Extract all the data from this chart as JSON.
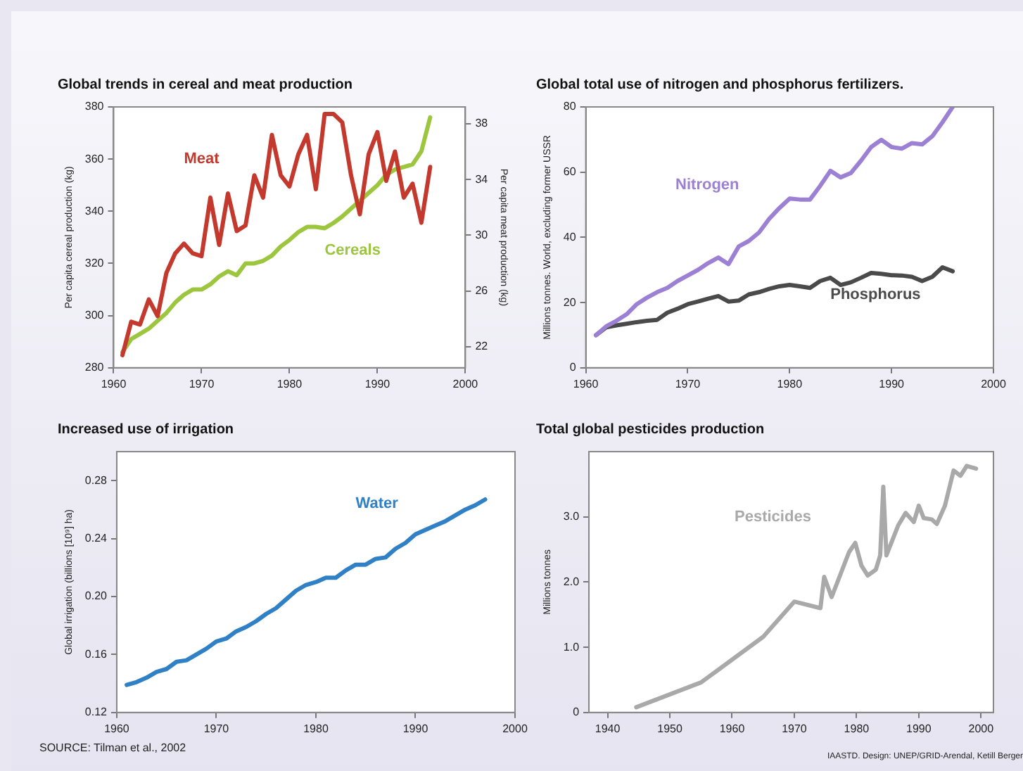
{
  "chart_data": [
    {
      "type": "line",
      "title": "Global trends in cereal and meat production",
      "ylabel": "Per capita cereal production (kg)",
      "y2label": "Per capita meat production (kg)",
      "x": [
        1961,
        1962,
        1963,
        1964,
        1965,
        1966,
        1967,
        1968,
        1969,
        1970,
        1971,
        1972,
        1973,
        1974,
        1975,
        1976,
        1977,
        1978,
        1979,
        1980,
        1981,
        1982,
        1983,
        1984,
        1985,
        1986,
        1987,
        1988,
        1989,
        1990,
        1991,
        1992,
        1993,
        1994,
        1995,
        1996
      ],
      "xlim": [
        1960,
        2000
      ],
      "xticks": [
        1960,
        1970,
        1980,
        1990,
        2000
      ],
      "ylim": [
        280,
        380
      ],
      "yticks": [
        280,
        300,
        320,
        340,
        360,
        380
      ],
      "y2lim": [
        20.5,
        39.2
      ],
      "y2ticks": [
        22,
        26,
        30,
        34,
        38
      ],
      "grid": false,
      "legend": false,
      "marker": "none",
      "line_style": "solid",
      "series": [
        {
          "name": "Meat",
          "color": "#c4392d",
          "axis": "y2",
          "values": [
            21.4,
            23.8,
            23.6,
            25.4,
            24.2,
            27.3,
            28.7,
            29.4,
            28.7,
            28.5,
            32.7,
            29.3,
            33,
            30.3,
            30.7,
            34.3,
            32.7,
            37.2,
            34.3,
            33.5,
            35.8,
            37.2,
            33.3,
            38.7,
            38.7,
            38.1,
            34.3,
            31.5,
            35.8,
            37.4,
            33.9,
            36,
            32.7,
            33.7,
            30.9,
            34.9
          ]
        },
        {
          "name": "Cereals",
          "color": "#9cc63e",
          "values": [
            286,
            291,
            293,
            295,
            298,
            301,
            305,
            308,
            310,
            310,
            312,
            315,
            317,
            315.5,
            320,
            320,
            321,
            323,
            326.5,
            329,
            332,
            334,
            334,
            333.5,
            335.5,
            338,
            341,
            344,
            347,
            350,
            354,
            356,
            357,
            358,
            363,
            376
          ]
        }
      ]
    },
    {
      "type": "line",
      "title": "Global total use of nitrogen and phosphorus fertilizers.",
      "ylabel": "Millions tonnes. World, excluding former USSR",
      "x": [
        1961,
        1962,
        1963,
        1964,
        1965,
        1966,
        1967,
        1968,
        1969,
        1970,
        1971,
        1972,
        1973,
        1974,
        1975,
        1976,
        1977,
        1978,
        1979,
        1980,
        1981,
        1982,
        1983,
        1984,
        1985,
        1986,
        1987,
        1988,
        1989,
        1990,
        1991,
        1992,
        1993,
        1994,
        1995,
        1996
      ],
      "xlim": [
        1960,
        2000
      ],
      "xticks": [
        1960,
        1970,
        1980,
        1990,
        2000
      ],
      "ylim": [
        0,
        80
      ],
      "yticks": [
        0,
        20,
        40,
        60,
        80
      ],
      "grid": false,
      "legend": false,
      "marker": "none",
      "line_style": "solid",
      "series": [
        {
          "name": "Nitrogen",
          "color": "#9b80d4",
          "values": [
            10,
            12.7,
            14.4,
            16.4,
            19.5,
            21.5,
            23.2,
            24.5,
            26.6,
            28.3,
            30,
            32.1,
            33.8,
            31.8,
            37.2,
            38.9,
            41.5,
            45.7,
            49,
            51.9,
            51.6,
            51.6,
            55.8,
            60.4,
            58.4,
            59.7,
            63.5,
            67.7,
            69.9,
            67.7,
            67.2,
            68.9,
            68.5,
            71,
            75.3,
            80
          ]
        },
        {
          "name": "Phosphorus",
          "color": "#4a4a4a",
          "values": [
            10,
            12.4,
            13,
            13.5,
            14,
            14.4,
            14.7,
            16.9,
            18.1,
            19.5,
            20.3,
            21.2,
            22,
            20.3,
            20.6,
            22.5,
            23.2,
            24.2,
            25,
            25.4,
            25,
            24.5,
            26.6,
            27.6,
            25.4,
            26.2,
            27.6,
            29.1,
            28.8,
            28.4,
            28.3,
            27.9,
            26.6,
            27.9,
            30.8,
            29.6
          ]
        }
      ]
    },
    {
      "type": "line",
      "title": "Increased use of irrigation",
      "ylabel": "Global irrigation (billions [10⁹] ha)",
      "x": [
        1961,
        1962,
        1963,
        1964,
        1965,
        1966,
        1967,
        1968,
        1969,
        1970,
        1971,
        1972,
        1973,
        1974,
        1975,
        1976,
        1977,
        1978,
        1979,
        1980,
        1981,
        1982,
        1983,
        1984,
        1985,
        1986,
        1987,
        1988,
        1989,
        1990,
        1991,
        1992,
        1993,
        1994,
        1995,
        1996,
        1997
      ],
      "xlim": [
        1960,
        2000
      ],
      "xticks": [
        1960,
        1970,
        1980,
        1990,
        2000
      ],
      "ylim": [
        0.12,
        0.3
      ],
      "yticks": [
        {
          "value": 0.12,
          "label": "0.12"
        },
        {
          "value": 0.16,
          "label": "0.16"
        },
        {
          "value": 0.2,
          "label": "0.20"
        },
        {
          "value": 0.24,
          "label": "0.24"
        },
        {
          "value": 0.28,
          "label": "0.28"
        }
      ],
      "grid": false,
      "legend": false,
      "marker": "none",
      "line_style": "solid",
      "series": [
        {
          "name": "Water",
          "color": "#2f80c4",
          "values": [
            0.139,
            0.141,
            0.144,
            0.148,
            0.15,
            0.155,
            0.156,
            0.16,
            0.164,
            0.169,
            0.171,
            0.176,
            0.179,
            0.183,
            0.188,
            0.192,
            0.198,
            0.204,
            0.208,
            0.21,
            0.213,
            0.213,
            0.218,
            0.222,
            0.222,
            0.226,
            0.227,
            0.233,
            0.237,
            0.243,
            0.246,
            0.249,
            0.252,
            0.256,
            0.26,
            0.263,
            0.267
          ]
        }
      ],
      "annotations": [
        "SOURCE: Tilman et al., 2002"
      ]
    },
    {
      "type": "line",
      "title": "Total global pesticides production",
      "ylabel": "Millions tonnes",
      "xlim": [
        1937,
        2002
      ],
      "xticks": [
        1940,
        1950,
        1960,
        1970,
        1980,
        1990,
        2000
      ],
      "ylim": [
        0,
        4
      ],
      "yticks": [
        0,
        {
          "value": 1,
          "label": "1.0"
        },
        {
          "value": 2,
          "label": "2.0"
        },
        {
          "value": 3,
          "label": "3.0"
        }
      ],
      "grid": false,
      "legend": false,
      "marker": "none",
      "line_style": "solid",
      "series": [
        {
          "name": "Pesticides",
          "color": "#a9a9a9",
          "x": [
            1944.6,
            1955,
            1965,
            1970,
            1974.2,
            1974.8,
            1976,
            1978.8,
            1979.8,
            1980.8,
            1981.8,
            1983.1,
            1983.8,
            1984.3,
            1984.8,
            1986.7,
            1987.9,
            1989.2,
            1990,
            1990.8,
            1992.1,
            1992.9,
            1994.2,
            1995.6,
            1996.7,
            1997.7,
            1999.2
          ],
          "values": [
            0.08,
            0.46,
            1.16,
            1.7,
            1.6,
            2.08,
            1.77,
            2.46,
            2.6,
            2.25,
            2.1,
            2.19,
            2.41,
            3.46,
            2.41,
            2.87,
            3.06,
            2.92,
            3.17,
            2.98,
            2.96,
            2.89,
            3.17,
            3.71,
            3.63,
            3.78,
            3.74
          ]
        }
      ],
      "annotations": [
        "IAASTD. Design: UNEP/GRID-Arendal, Ketill Berger"
      ]
    }
  ]
}
